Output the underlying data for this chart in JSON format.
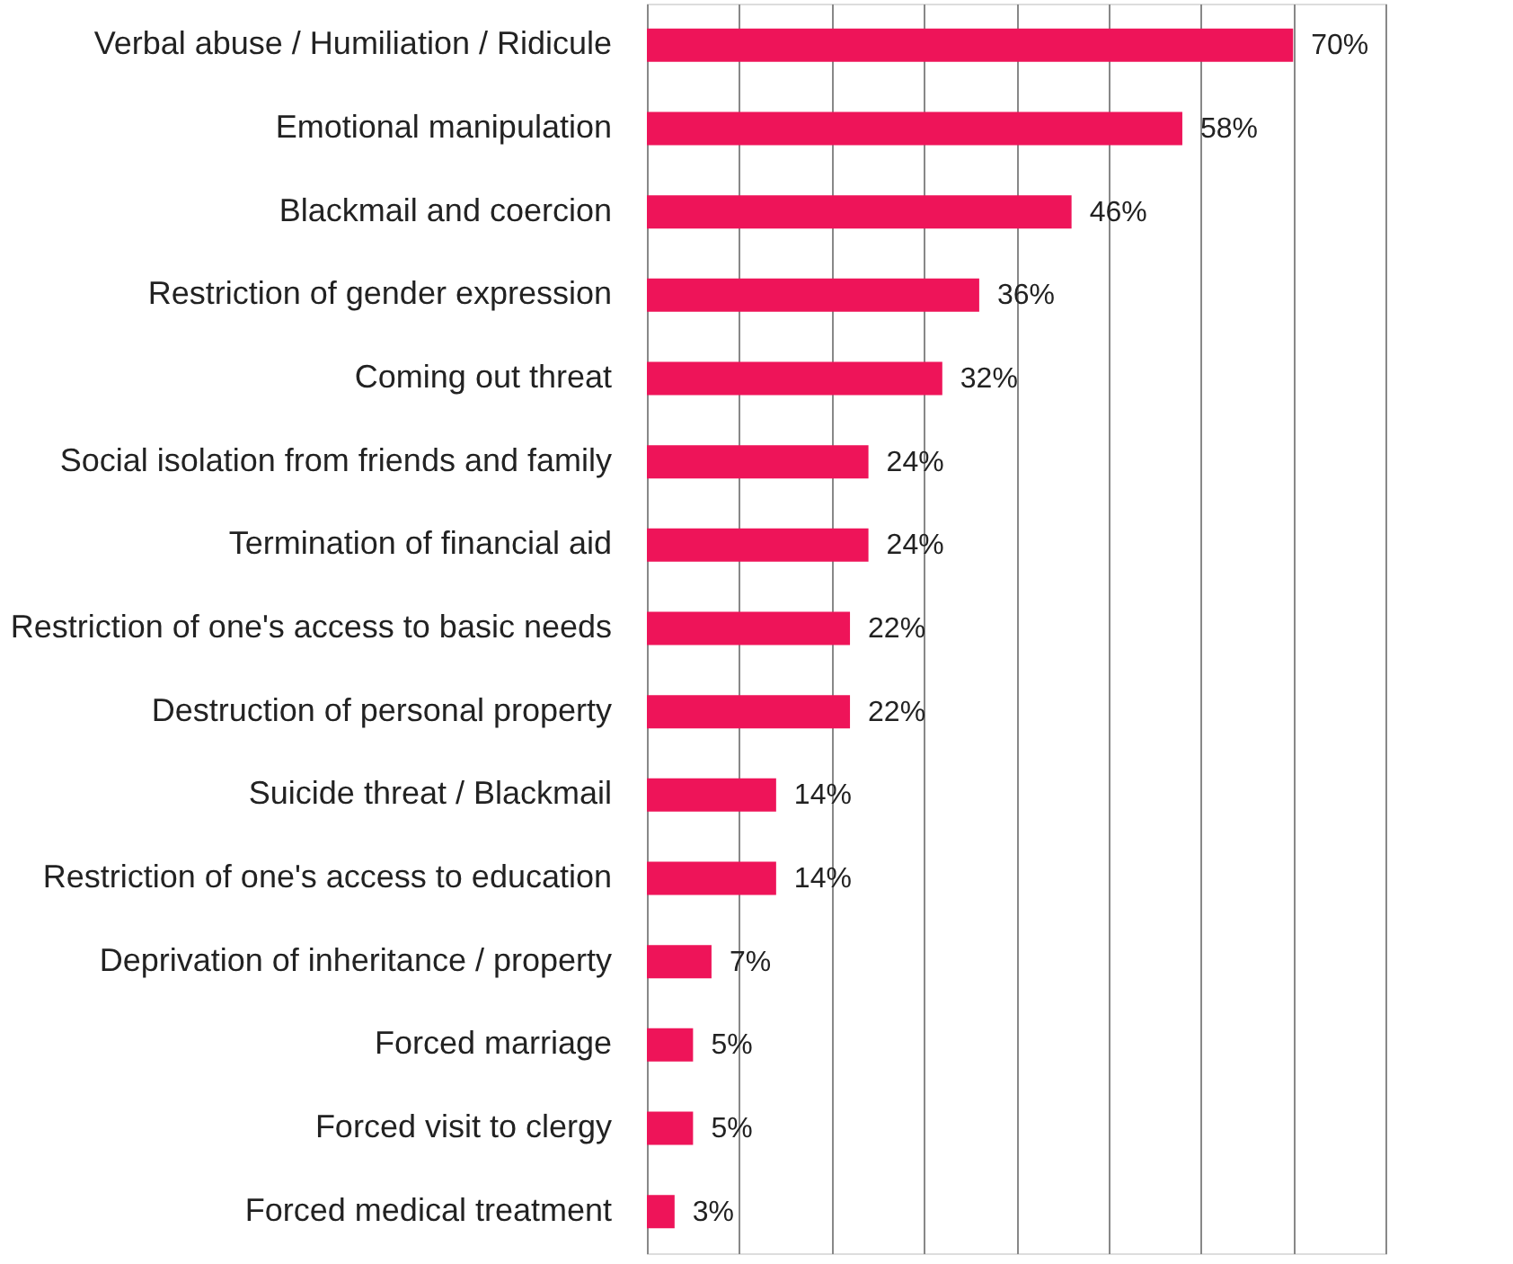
{
  "chart_data": {
    "type": "bar",
    "orientation": "horizontal",
    "categories": [
      "Verbal abuse / Humiliation / Ridicule",
      "Emotional manipulation",
      "Blackmail and coercion",
      "Restriction of gender expression",
      "Coming out threat",
      "Social isolation from friends and family",
      "Termination of financial aid",
      "Restriction of one's access to basic needs",
      "Destruction of personal property",
      "Suicide threat / Blackmail",
      "Restriction of one's access to education",
      "Deprivation of inheritance / property",
      "Forced marriage",
      "Forced visit to clergy",
      "Forced medical treatment"
    ],
    "values": [
      70,
      58,
      46,
      36,
      32,
      24,
      24,
      22,
      22,
      14,
      14,
      7,
      5,
      5,
      3
    ],
    "value_labels": [
      "70%",
      "58%",
      "46%",
      "36%",
      "32%",
      "24%",
      "24%",
      "22%",
      "22%",
      "14%",
      "14%",
      "7%",
      "5%",
      "5%",
      "3%"
    ],
    "color": "#ee1459",
    "xlim": [
      0,
      80
    ],
    "xticks": [
      {
        "value": 0,
        "label": null
      },
      {
        "value": 10,
        "label": null
      },
      {
        "value": 20,
        "label": null
      },
      {
        "value": 30,
        "label": null
      },
      {
        "value": 40,
        "label": null
      },
      {
        "value": 50,
        "label": null
      },
      {
        "value": 60,
        "label": null
      },
      {
        "value": 70,
        "label": null
      },
      {
        "value": 80,
        "label": null
      }
    ],
    "grid": "x",
    "tick_labels": "y"
  }
}
